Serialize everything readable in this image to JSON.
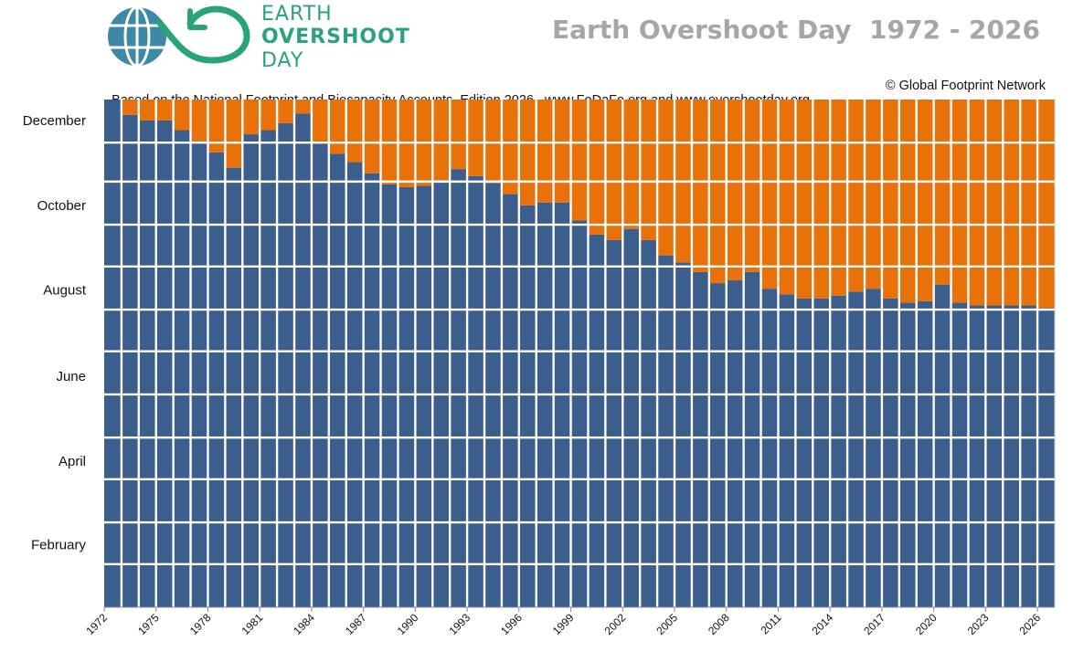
{
  "logo": {
    "line1": "EARTH",
    "line2": "OVERSHOOT",
    "line3": "DAY",
    "icon": "globe-infinity-arrow-icon",
    "color": "#2aa27a",
    "globe_color": "#3d87a7"
  },
  "title": "Earth Overshoot Day  1972 - 2026",
  "source": "Based on the National Footprint and Biocapacity Accounts, Edition 2026.  www.FoDaFo.org and www.overshootday.org",
  "credit": "© Global Footprint Network",
  "colors": {
    "before_overshoot": "#3b5e8c",
    "after_overshoot": "#e8710a",
    "grid": "#ffffff"
  },
  "chart_data": {
    "type": "bar",
    "stacked": true,
    "x": [
      1972,
      1973,
      1974,
      1975,
      1976,
      1977,
      1978,
      1979,
      1980,
      1981,
      1982,
      1983,
      1984,
      1985,
      1986,
      1987,
      1988,
      1989,
      1990,
      1991,
      1992,
      1993,
      1994,
      1995,
      1996,
      1997,
      1998,
      1999,
      2000,
      2001,
      2002,
      2003,
      2004,
      2005,
      2006,
      2007,
      2008,
      2009,
      2010,
      2011,
      2012,
      2013,
      2014,
      2015,
      2016,
      2017,
      2018,
      2019,
      2020,
      2021,
      2022,
      2023,
      2024,
      2025,
      2026
    ],
    "x_ticks": [
      "1972",
      "1975",
      "1978",
      "1981",
      "1984",
      "1987",
      "1990",
      "1993",
      "1996",
      "1999",
      "2002",
      "2005",
      "2008",
      "2011",
      "2014",
      "2017",
      "2020",
      "2023",
      "2026"
    ],
    "y_month_labels": [
      "December",
      "October",
      "August",
      "June",
      "April",
      "February"
    ],
    "series": [
      {
        "values": [
          365,
          354,
          350,
          350,
          343,
          335,
          327,
          316,
          340,
          343,
          348,
          355,
          334,
          326,
          320,
          312,
          304,
          302,
          303,
          307,
          315,
          310,
          305,
          297,
          289,
          291,
          291,
          278,
          268,
          264,
          272,
          264,
          253,
          248,
          241,
          233,
          235,
          241,
          229,
          225,
          222,
          222,
          224,
          227,
          229,
          222,
          219,
          220,
          232,
          219,
          217,
          217,
          217,
          217,
          215
        ]
      },
      {
        "values": [
          0,
          11,
          15,
          15,
          22,
          30,
          38,
          49,
          25,
          22,
          17,
          10,
          31,
          39,
          45,
          53,
          61,
          63,
          62,
          58,
          50,
          55,
          60,
          68,
          76,
          74,
          74,
          87,
          97,
          101,
          93,
          101,
          112,
          117,
          124,
          132,
          130,
          124,
          136,
          140,
          143,
          143,
          141,
          138,
          136,
          143,
          146,
          145,
          133,
          146,
          148,
          148,
          148,
          148,
          150
        ]
      }
    ],
    "ylim": [
      0,
      365
    ],
    "grid": true,
    "legend": "none"
  }
}
